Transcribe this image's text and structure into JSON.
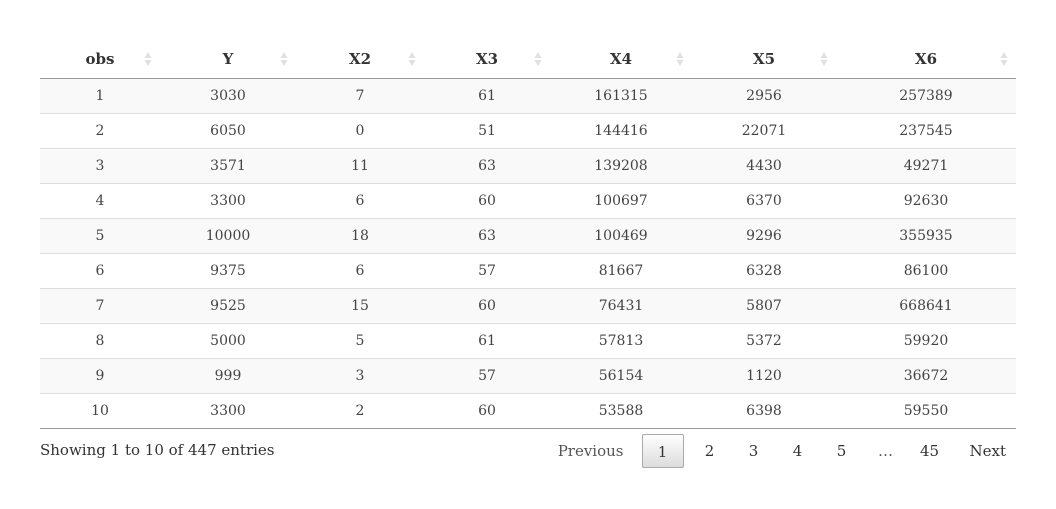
{
  "table": {
    "columns": [
      {
        "key": "obs",
        "label": "obs"
      },
      {
        "key": "Y",
        "label": "Y"
      },
      {
        "key": "X2",
        "label": "X2"
      },
      {
        "key": "X3",
        "label": "X3"
      },
      {
        "key": "X4",
        "label": "X4"
      },
      {
        "key": "X5",
        "label": "X5"
      },
      {
        "key": "X6",
        "label": "X6"
      }
    ],
    "rows": [
      [
        "1",
        "3030",
        "7",
        "61",
        "161315",
        "2956",
        "257389"
      ],
      [
        "2",
        "6050",
        "0",
        "51",
        "144416",
        "22071",
        "237545"
      ],
      [
        "3",
        "3571",
        "11",
        "63",
        "139208",
        "4430",
        "49271"
      ],
      [
        "4",
        "3300",
        "6",
        "60",
        "100697",
        "6370",
        "92630"
      ],
      [
        "5",
        "10000",
        "18",
        "63",
        "100469",
        "9296",
        "355935"
      ],
      [
        "6",
        "9375",
        "6",
        "57",
        "81667",
        "6328",
        "86100"
      ],
      [
        "7",
        "9525",
        "15",
        "60",
        "76431",
        "5807",
        "668641"
      ],
      [
        "8",
        "5000",
        "5",
        "61",
        "57813",
        "5372",
        "59920"
      ],
      [
        "9",
        "999",
        "3",
        "57",
        "56154",
        "1120",
        "36672"
      ],
      [
        "10",
        "3300",
        "2",
        "60",
        "53588",
        "6398",
        "59550"
      ]
    ]
  },
  "footer": {
    "info": "Showing 1 to 10 of 447 entries",
    "pagination": {
      "previous": "Previous",
      "pages": [
        "1",
        "2",
        "3",
        "4",
        "5"
      ],
      "current": "1",
      "ellipsis": "…",
      "last": "45",
      "next": "Next"
    }
  },
  "icons": {
    "sort": "sort-both-icon"
  },
  "colors": {
    "header_border": "#999999",
    "row_border": "#dddddd",
    "stripe": "#f9f9f9",
    "sort_icon": "#e0e0e0"
  }
}
